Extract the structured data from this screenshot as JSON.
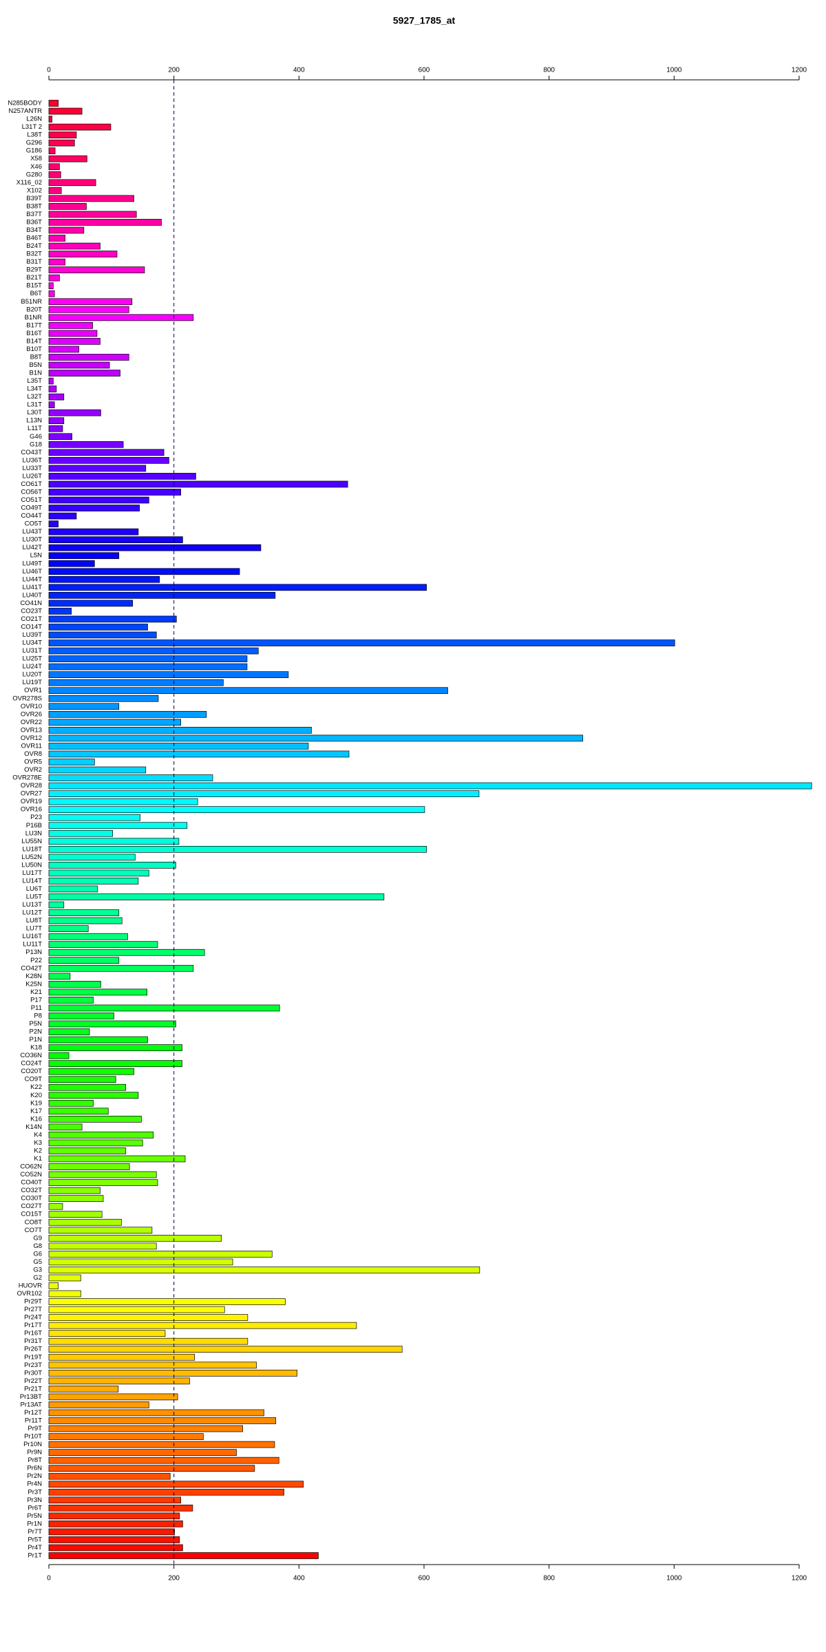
{
  "chart_data": {
    "type": "barh",
    "title": "5927_1785_at",
    "categories": [
      "N285BODY",
      "N257ANTR",
      "L26N",
      "L31T 2",
      "L38T",
      "G296",
      "G186",
      "X58",
      "X46",
      "G280",
      "X116_02",
      "X102",
      "B39T",
      "B38T",
      "B37T",
      "B36T",
      "B34T",
      "B46T",
      "B24T",
      "B32T",
      "B31T",
      "B29T",
      "B21T",
      "B15T",
      "B6T",
      "B51NR",
      "B20T",
      "B1NR",
      "B17T",
      "B16T",
      "B14T",
      "B10T",
      "B8T",
      "B5N",
      "B1N",
      "L35T",
      "L34T",
      "L32T",
      "L31T",
      "L30T",
      "L13N",
      "L11T",
      "G46",
      "G18",
      "CO43T",
      "LU36T",
      "LU33T",
      "LU26T",
      "CO61T",
      "CO56T",
      "CO51T",
      "CO49T",
      "CO44T",
      "CO5T",
      "LU43T",
      "LU30T",
      "LU42T",
      "L5N",
      "LU49T",
      "LU46T",
      "LU44T",
      "LU41T",
      "LU40T",
      "CO41N",
      "CO23T",
      "CO21T",
      "CO14T",
      "LU39T",
      "LU34T",
      "LU31T",
      "LU25T",
      "LU24T",
      "LU20T",
      "LU19T",
      "OVR1",
      "OVR278S",
      "OVR10",
      "OVR26",
      "OVR22",
      "OVR13",
      "OVR12",
      "OVR11",
      "OVR8",
      "OVR5",
      "OVR2",
      "OVR278E",
      "OVR28",
      "OVR27",
      "OVR19",
      "OVR16",
      "P23",
      "P16B",
      "LU3N",
      "LU55N",
      "LU18T",
      "LU52N",
      "LU50N",
      "LU17T",
      "LU14T",
      "LU6T",
      "LU5T",
      "LU13T",
      "LU12T",
      "LU8T",
      "LU7T",
      "LU16T",
      "LU11T",
      "P13N",
      "P22",
      "CO42T",
      "K28N",
      "K25N",
      "K21",
      "P17",
      "P11",
      "P8",
      "P5N",
      "P2N",
      "P1N",
      "K18",
      "CO36N",
      "CO24T",
      "CO20T",
      "CO9T",
      "K22",
      "K20",
      "K19",
      "K17",
      "K16",
      "K14N",
      "K4",
      "K3",
      "K2",
      "K1",
      "CO62N",
      "CO52N",
      "CO40T",
      "CO32T",
      "CO30T",
      "CO27T",
      "CO15T",
      "CO8T",
      "CO7T",
      "G9",
      "G8",
      "G6",
      "G5",
      "G3",
      "G2",
      "HUOVR",
      "OVR102",
      "Pr29T",
      "Pr27T",
      "Pr24T",
      "Pr17T",
      "Pr16T",
      "Pr31T",
      "Pr26T",
      "Pr19T",
      "Pr23T",
      "Pr30T",
      "Pr22T",
      "Pr21T",
      "Pr13BT",
      "Pr13AT",
      "Pr12T",
      "Pr11T",
      "Pr9T",
      "Pr10T",
      "Pr10N",
      "Pr9N",
      "Pr8T",
      "Pr6N",
      "Pr2N",
      "Pr4N",
      "Pr3T",
      "Pr3N",
      "Pr6T",
      "Pr5N",
      "Pr1N",
      "Pr7T",
      "Pr5T",
      "Pr4T",
      "Pr1T"
    ],
    "values": [
      15,
      53,
      5,
      99,
      44,
      41,
      10,
      61,
      17,
      19,
      75,
      20,
      136,
      60,
      140,
      180,
      56,
      26,
      82,
      109,
      26,
      153,
      17,
      7,
      9,
      133,
      128,
      231,
      70,
      77,
      82,
      48,
      128,
      97,
      114,
      7,
      12,
      24,
      9,
      83,
      24,
      22,
      37,
      119,
      184,
      192,
      155,
      235,
      478,
      211,
      160,
      145,
      44,
      15,
      143,
      214,
      339,
      112,
      73,
      305,
      177,
      604,
      362,
      134,
      36,
      204,
      158,
      172,
      1001,
      335,
      317,
      317,
      383,
      279,
      638,
      175,
      112,
      252,
      211,
      420,
      854,
      415,
      480,
      73,
      155,
      262,
      1220,
      688,
      238,
      601,
      146,
      221,
      102,
      208,
      604,
      138,
      203,
      160,
      143,
      78,
      536,
      24,
      112,
      117,
      63,
      126,
      174,
      249,
      112,
      231,
      34,
      83,
      157,
      71,
      369,
      104,
      203,
      65,
      158,
      213,
      32,
      213,
      136,
      107,
      123,
      143,
      71,
      95,
      148,
      53,
      167,
      150,
      123,
      218,
      129,
      172,
      174,
      82,
      87,
      22,
      85,
      116,
      165,
      276,
      172,
      357,
      294,
      689,
      51,
      15,
      51,
      378,
      281,
      318,
      492,
      186,
      318,
      565,
      233,
      332,
      397,
      225,
      111,
      206,
      160,
      344,
      363,
      310,
      247,
      361,
      300,
      368,
      329,
      194,
      407,
      376,
      211,
      230,
      209,
      214,
      201,
      209,
      214,
      431
    ],
    "color_hue": [
      350,
      0
    ],
    "xlim": [
      0,
      1200
    ],
    "xticks": [
      0,
      200,
      400,
      600,
      800,
      1000,
      1200
    ],
    "reference_line": 200
  }
}
